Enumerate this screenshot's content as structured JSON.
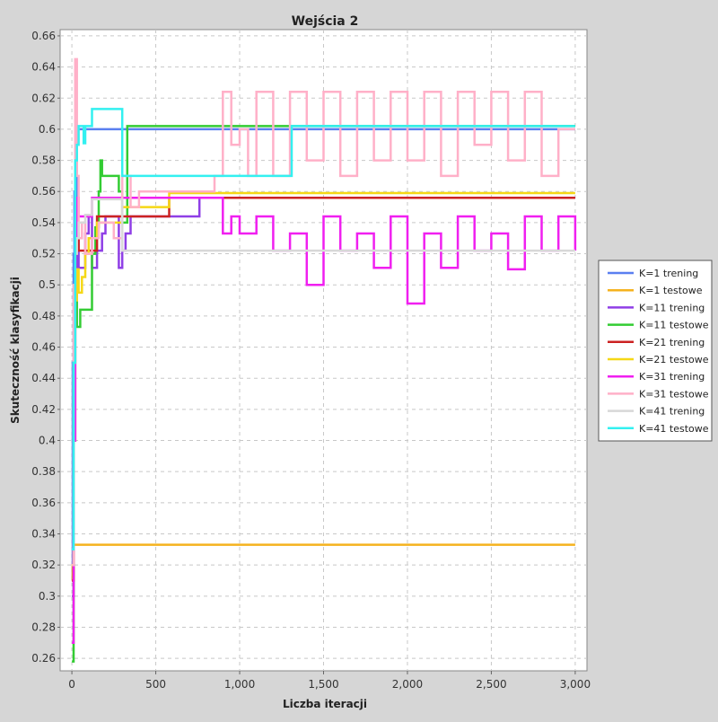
{
  "chart_data": {
    "type": "line",
    "title": "Wejścia 2",
    "xlabel": "Liczba iteracji",
    "ylabel": "Skuteczność klasyfikacji",
    "xlim": [
      -70,
      3070
    ],
    "ylim": [
      0.252,
      0.664
    ],
    "x_ticks": [
      0,
      500,
      1000,
      1500,
      2000,
      2500,
      3000
    ],
    "x_tick_labels": [
      "0",
      "500",
      "1,000",
      "1,500",
      "2,000",
      "2,500",
      "3,000"
    ],
    "y_ticks": [
      0.26,
      0.28,
      0.3,
      0.32,
      0.34,
      0.36,
      0.38,
      0.4,
      0.42,
      0.44,
      0.46,
      0.48,
      0.5,
      0.52,
      0.54,
      0.56,
      0.58,
      0.6,
      0.62,
      0.64,
      0.66
    ],
    "y_tick_labels": [
      "0.26",
      "0.28",
      "0.3",
      "0.32",
      "0.34",
      "0.36",
      "0.38",
      "0.4",
      "0.42",
      "0.44",
      "0.46",
      "0.48",
      "0.5",
      "0.52",
      "0.54",
      "0.56",
      "0.58",
      "0.6",
      "0.62",
      "0.64",
      "0.66"
    ],
    "grid": true,
    "legend_position": "right",
    "series": [
      {
        "name": "K=1 trening",
        "color": "#5a7ff0",
        "x": [
          0,
          5,
          10,
          15,
          20,
          25,
          30,
          3000
        ],
        "y": [
          0.31,
          0.45,
          0.52,
          0.56,
          0.58,
          0.55,
          0.6,
          0.6
        ]
      },
      {
        "name": "K=1 testowe",
        "color": "#f5b21e",
        "x": [
          0,
          5,
          10,
          15,
          20,
          3000
        ],
        "y": [
          0.31,
          0.32,
          0.333,
          0.333,
          0.333,
          0.333
        ]
      },
      {
        "name": "K=11 trening",
        "color": "#8f3fe6",
        "x": [
          0,
          10,
          20,
          30,
          40,
          60,
          80,
          100,
          120,
          150,
          180,
          200,
          230,
          280,
          300,
          320,
          350,
          400,
          500,
          600,
          700,
          750,
          760,
          3000
        ],
        "y": [
          0.3,
          0.45,
          0.5,
          0.533,
          0.511,
          0.511,
          0.533,
          0.544,
          0.511,
          0.522,
          0.533,
          0.544,
          0.544,
          0.511,
          0.522,
          0.533,
          0.544,
          0.544,
          0.544,
          0.544,
          0.544,
          0.544,
          0.556,
          0.556
        ]
      },
      {
        "name": "K=11 testowe",
        "color": "#33cc33",
        "x": [
          0,
          10,
          20,
          30,
          40,
          50,
          60,
          80,
          100,
          120,
          140,
          160,
          170,
          180,
          190,
          200,
          250,
          280,
          300,
          330,
          350,
          1300,
          3000
        ],
        "y": [
          0.258,
          0.4,
          0.5,
          0.473,
          0.473,
          0.484,
          0.484,
          0.484,
          0.484,
          0.52,
          0.537,
          0.56,
          0.58,
          0.57,
          0.57,
          0.57,
          0.57,
          0.56,
          0.54,
          0.602,
          0.602,
          0.602,
          0.602
        ]
      },
      {
        "name": "K=21 trening",
        "color": "#cc2222",
        "x": [
          0,
          10,
          20,
          30,
          40,
          60,
          80,
          120,
          150,
          200,
          300,
          350,
          400,
          570,
          580,
          3000
        ],
        "y": [
          0.31,
          0.4,
          0.52,
          0.533,
          0.522,
          0.522,
          0.522,
          0.522,
          0.544,
          0.544,
          0.544,
          0.544,
          0.544,
          0.544,
          0.556,
          0.556
        ]
      },
      {
        "name": "K=21 testowe",
        "color": "#f5d816",
        "x": [
          0,
          10,
          20,
          30,
          40,
          60,
          80,
          100,
          150,
          200,
          300,
          400,
          500,
          560,
          580,
          600,
          700,
          800,
          3000
        ],
        "y": [
          0.32,
          0.45,
          0.49,
          0.51,
          0.495,
          0.505,
          0.52,
          0.53,
          0.54,
          0.54,
          0.55,
          0.55,
          0.55,
          0.55,
          0.559,
          0.559,
          0.559,
          0.559,
          0.559
        ]
      },
      {
        "name": "K=31 trening",
        "color": "#f01ff0",
        "x": [
          0,
          10,
          20,
          30,
          40,
          60,
          80,
          120,
          160,
          200,
          300,
          400,
          500,
          600,
          700,
          800,
          900,
          950,
          1000,
          1100,
          1200,
          1300,
          1400,
          1500,
          1600,
          1700,
          1800,
          1900,
          2000,
          2100,
          2200,
          2300,
          2400,
          2500,
          2600,
          2700,
          2800,
          2900,
          3000
        ],
        "y": [
          0.27,
          0.4,
          0.53,
          0.556,
          0.544,
          0.544,
          0.544,
          0.556,
          0.556,
          0.556,
          0.556,
          0.556,
          0.556,
          0.556,
          0.556,
          0.556,
          0.533,
          0.544,
          0.533,
          0.544,
          0.522,
          0.533,
          0.5,
          0.544,
          0.522,
          0.533,
          0.511,
          0.544,
          0.488,
          0.533,
          0.511,
          0.544,
          0.522,
          0.533,
          0.51,
          0.544,
          0.522,
          0.544,
          0.522
        ]
      },
      {
        "name": "K=31 testowe",
        "color": "#ffb0c8",
        "x": [
          0,
          10,
          20,
          30,
          40,
          60,
          80,
          120,
          160,
          200,
          250,
          300,
          350,
          400,
          500,
          600,
          700,
          800,
          850,
          900,
          950,
          1000,
          1050,
          1100,
          1200,
          1300,
          1400,
          1500,
          1600,
          1700,
          1800,
          1900,
          2000,
          2100,
          2200,
          2300,
          2400,
          2500,
          2600,
          2700,
          2800,
          2900,
          3000
        ],
        "y": [
          0.32,
          0.5,
          0.645,
          0.57,
          0.53,
          0.54,
          0.52,
          0.53,
          0.54,
          0.54,
          0.53,
          0.57,
          0.55,
          0.56,
          0.56,
          0.56,
          0.56,
          0.56,
          0.57,
          0.624,
          0.59,
          0.6,
          0.57,
          0.624,
          0.57,
          0.624,
          0.58,
          0.624,
          0.57,
          0.624,
          0.58,
          0.624,
          0.58,
          0.624,
          0.57,
          0.624,
          0.59,
          0.624,
          0.58,
          0.624,
          0.57,
          0.6,
          0.6
        ]
      },
      {
        "name": "K=41 trening",
        "color": "#d8d8d8",
        "x": [
          0,
          10,
          20,
          30,
          40,
          60,
          80,
          120,
          160,
          200,
          250,
          300,
          350,
          3000
        ],
        "y": [
          0.33,
          0.45,
          0.52,
          0.53,
          0.54,
          0.54,
          0.545,
          0.555,
          0.555,
          0.555,
          0.555,
          0.522,
          0.522,
          0.522
        ]
      },
      {
        "name": "K=41 testowe",
        "color": "#33f0f0",
        "x": [
          0,
          10,
          20,
          25,
          30,
          35,
          40,
          50,
          60,
          70,
          80,
          100,
          120,
          140,
          160,
          200,
          250,
          290,
          300,
          310,
          350,
          400,
          500,
          600,
          700,
          800,
          900,
          1000,
          1100,
          1200,
          1300,
          1310,
          3000
        ],
        "y": [
          0.33,
          0.45,
          0.58,
          0.58,
          0.59,
          0.59,
          0.602,
          0.602,
          0.602,
          0.591,
          0.602,
          0.602,
          0.613,
          0.613,
          0.613,
          0.613,
          0.613,
          0.613,
          0.57,
          0.57,
          0.57,
          0.57,
          0.57,
          0.57,
          0.57,
          0.57,
          0.57,
          0.57,
          0.57,
          0.57,
          0.57,
          0.602,
          0.602
        ]
      }
    ]
  }
}
